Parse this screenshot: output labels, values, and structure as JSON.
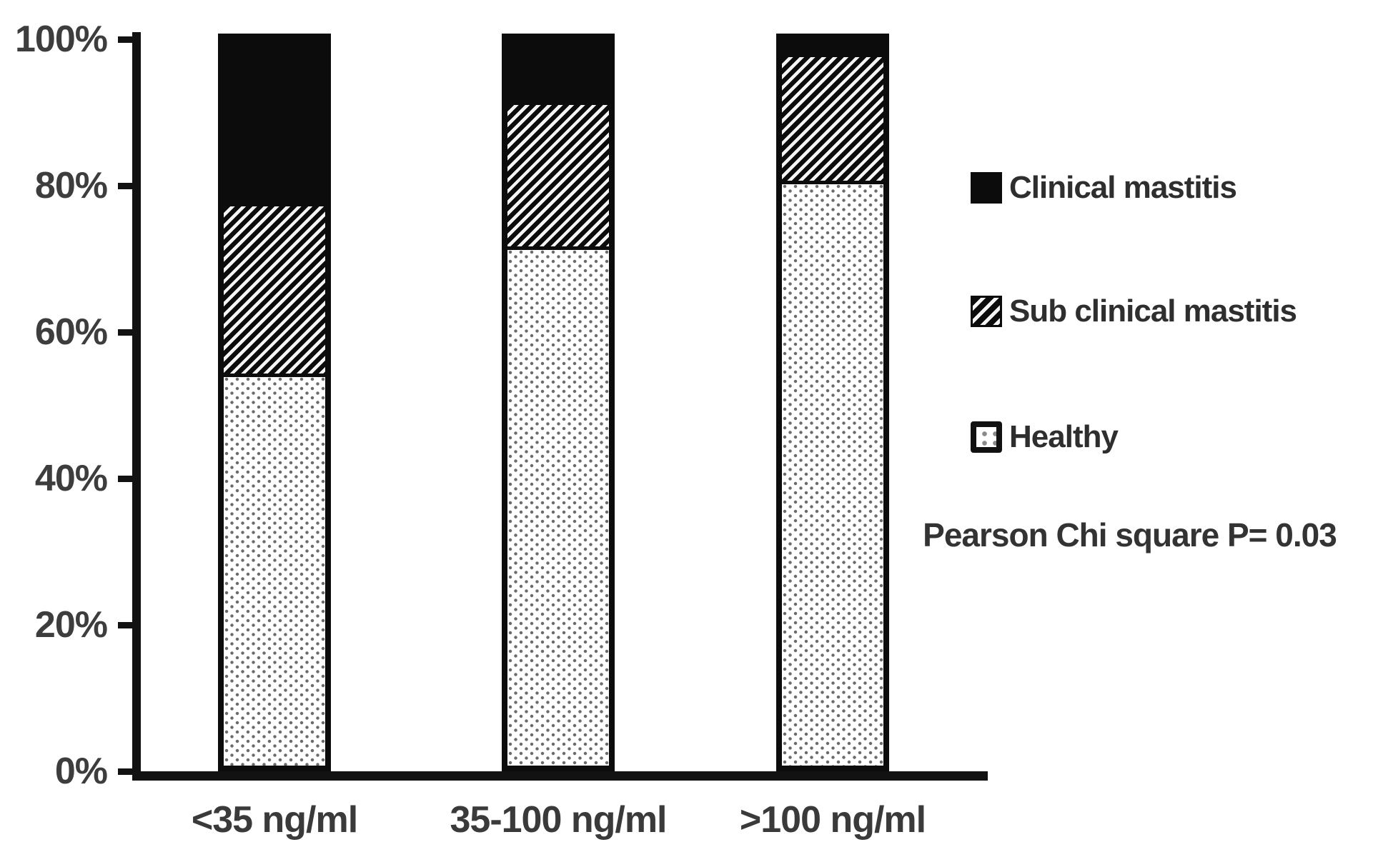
{
  "figure": {
    "background": "#ffffff",
    "edge_fragment": "("
  },
  "chart_data": {
    "type": "bar",
    "subtype": "stacked-percent-column",
    "title": "",
    "xlabel": "",
    "ylabel": "",
    "ylim": [
      0,
      100
    ],
    "grid": false,
    "categories": [
      "<35 ng/ml",
      "35-100 ng/ml",
      ">100 ng/ml"
    ],
    "series": [
      {
        "name": "Healthy",
        "pattern": "dots",
        "values": [
          54,
          71.5,
          80.5
        ]
      },
      {
        "name": "Sub clinical mastitis",
        "pattern": "diagonal-hatch",
        "values": [
          23,
          19.5,
          17
        ]
      },
      {
        "name": "Clinical mastitis",
        "pattern": "solid-black",
        "values": [
          23,
          9,
          2.5
        ]
      }
    ],
    "y_ticks": [
      "100%",
      "80%",
      "60%",
      "40%",
      "20%",
      "0%"
    ],
    "legend": {
      "position": "right",
      "items": [
        {
          "label": "Clinical mastitis",
          "pattern": "solid-black"
        },
        {
          "label": "Sub clinical mastitis",
          "pattern": "diagonal-hatch"
        },
        {
          "label": "Healthy",
          "pattern": "dots"
        }
      ]
    },
    "annotation": "Pearson Chi square P= 0.03",
    "colors": {
      "bar_fill": "#0c0c0c",
      "axis": "#121212",
      "tick_label_text": "#3d3d3d",
      "legend_text": "#2e2e2e",
      "dot_pattern": "#6b6b6b"
    }
  }
}
